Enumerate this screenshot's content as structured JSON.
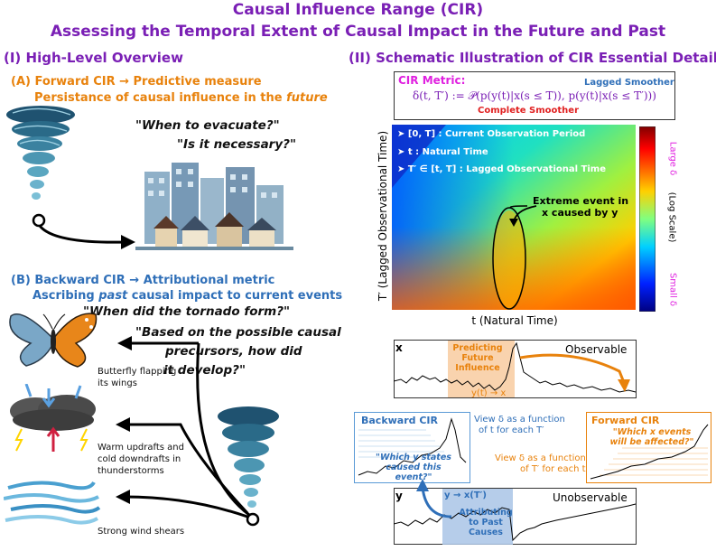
{
  "title": "Causal Influence Range (CIR)",
  "subtitle": "Assessing the Temporal Extent of Causal Impact in the Future and Past",
  "left": {
    "heading": "(I) High-Level Overview",
    "a_line1": "(A) Forward CIR → Predictive measure",
    "a_line2_prefix": "Persistance of causal influence in the ",
    "a_line2_em": "future",
    "q1": "\"When to evacuate?\"",
    "q2": "\"Is it necessary?\"",
    "b_line1": "(B) Backward CIR → Attributional metric",
    "b_line2_prefix": "Ascribing ",
    "b_line2_em": "past",
    "b_line2_suffix": " causal impact to current events",
    "q3": "\"When did the tornado form?\"",
    "q4_l1": "\"Based on the possible causal",
    "q4_l2": "precursors, how did",
    "q4_l3": "it develop?\"",
    "cause1_l1": "Butterfly flapping",
    "cause1_l2": "its wings",
    "cause2_l1": "Warm updrafts and",
    "cause2_l2": "cold downdrafts in",
    "cause2_l3": "thunderstorms",
    "cause3": "Strong wind shears"
  },
  "right": {
    "heading": "(II) Schematic Illustration of CIR Essential Details",
    "metric_label": "CIR Metric:",
    "lagged_smoother": "Lagged Smoother",
    "complete_smoother": "Complete Smoother",
    "formula": "δ(t, T′) := 𝒫(p(y(t)|x(s ≤ T)), p(y(t)|x(s ≤ T′)))",
    "legend1": "➤ [0, T] : Current Observation Period",
    "legend2": "➤ t : Natural Time",
    "legend3": "➤ T′ ∈ [t, T] : Lagged Observational Time",
    "extreme_l1": "Extreme event in",
    "extreme_l2": "x caused by y",
    "ylabel": "T′ (Lagged Observational Time)",
    "xlabel": "t (Natural Time)",
    "cb_large": "Large δ",
    "cb_scale": "(Log Scale)",
    "cb_small": "Small δ",
    "x_label": "x",
    "observable": "Observable",
    "pred_l1": "Predicting",
    "pred_l2": "Future",
    "pred_l3": "Influence",
    "y_to_x": "y(t) → x",
    "backward_title": "Backward CIR",
    "backward_q_l1": "\"Which y states",
    "backward_q_l2": "caused this event?\"",
    "view1_l1": "View δ as a function",
    "view1_l2": "of t for each T′",
    "forward_title": "Forward CIR",
    "forward_q_l1": "\"Which x events",
    "forward_q_l2": "will be affected?\"",
    "view2_l1": "View δ as a function",
    "view2_l2": "of T′ for each t",
    "y_label": "y",
    "unobservable": "Unobservable",
    "y_to_xT": "y → x(T′)",
    "attr_l1": "Attributing",
    "attr_l2": "to Past",
    "attr_l3": "Causes"
  },
  "colors": {
    "purple": "#7a1fb5",
    "orange": "#e8820c",
    "blue": "#2f6fb8",
    "red": "#e02020",
    "magenta": "#e020e0"
  }
}
